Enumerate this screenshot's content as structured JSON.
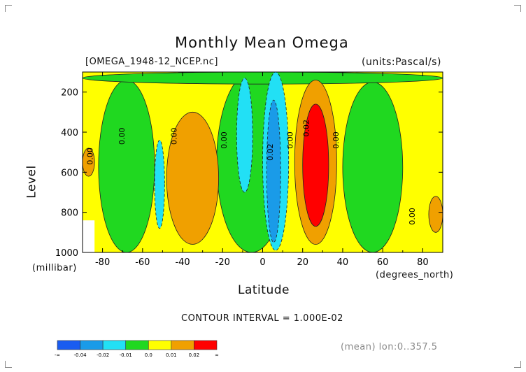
{
  "chart_data": {
    "type": "heatmap",
    "title": "Monthly Mean Omega",
    "file_label": "[OMEGA_1948-12_NCEP.nc]",
    "units_label": "(units:Pascal/s)",
    "ylabel": "Level",
    "yunit": "(millibar)",
    "xlabel": "Latitude",
    "xunit": "(degrees_north)",
    "xlim": [
      -90,
      90
    ],
    "ylim": [
      1000,
      100
    ],
    "x_ticks": [
      "-80",
      "-60",
      "-40",
      "-20",
      "0",
      "20",
      "40",
      "60",
      "80"
    ],
    "y_ticks": [
      "200",
      "400",
      "600",
      "800",
      "1000"
    ],
    "contour_interval": "CONTOUR INTERVAL = 1.000E-02",
    "mean_note": "(mean) lon:0..357.5",
    "contour_labels": [
      {
        "text": "0.00",
        "lat": -85,
        "level": 520
      },
      {
        "text": "0.00",
        "lat": -69,
        "level": 420
      },
      {
        "text": "0.00",
        "lat": -43,
        "level": 420
      },
      {
        "text": "0.00",
        "lat": -18,
        "level": 440
      },
      {
        "text": "0.02",
        "lat": 5,
        "level": 500
      },
      {
        "text": "0.00",
        "lat": 15,
        "level": 440
      },
      {
        "text": "0.02",
        "lat": 23,
        "level": 380
      },
      {
        "text": "0.00",
        "lat": 38,
        "level": 440
      },
      {
        "text": "0.00",
        "lat": 76,
        "level": 820
      }
    ],
    "levels": {
      "bounds": [
        "-∞",
        "-0.04",
        "-0.02",
        "-0.01",
        "0.0",
        "0.01",
        "0.02",
        "∞"
      ],
      "colors": [
        "#1a5cf0",
        "#1a9be8",
        "#22e0f5",
        "#20d820",
        "#ffff00",
        "#f0a000",
        "#ff0000"
      ]
    },
    "regions": [
      {
        "color": "#ffff00",
        "band": "background"
      },
      {
        "color": "#20d820",
        "lat_range": [
          -82,
          -54
        ],
        "level_range": [
          140,
          1000
        ]
      },
      {
        "color": "#20d820",
        "lat_range": [
          -23,
          12
        ],
        "level_range": [
          100,
          1000
        ]
      },
      {
        "color": "#20d820",
        "lat_range": [
          40,
          70
        ],
        "level_range": [
          150,
          1000
        ]
      },
      {
        "color": "#20d820",
        "lat_range": [
          -90,
          90
        ],
        "level_range": [
          100,
          160
        ]
      },
      {
        "color": "#f0a000",
        "lat_range": [
          -48,
          -22
        ],
        "level_range": [
          300,
          960
        ]
      },
      {
        "color": "#f0a000",
        "lat_range": [
          -90,
          -84
        ],
        "level_range": [
          480,
          620
        ]
      },
      {
        "color": "#f0a000",
        "lat_range": [
          83,
          90
        ],
        "level_range": [
          720,
          900
        ]
      },
      {
        "color": "#f0a000",
        "lat_range": [
          16,
          37
        ],
        "level_range": [
          140,
          960
        ]
      },
      {
        "color": "#ff0000",
        "lat_range": [
          20,
          33
        ],
        "level_range": [
          260,
          870
        ]
      },
      {
        "color": "#22e0f5",
        "lat_range": [
          -54,
          -49
        ],
        "level_range": [
          440,
          880
        ]
      },
      {
        "color": "#22e0f5",
        "lat_range": [
          -13,
          -5
        ],
        "level_range": [
          130,
          700
        ]
      },
      {
        "color": "#22e0f5",
        "lat_range": [
          0,
          13
        ],
        "level_range": [
          100,
          990
        ]
      },
      {
        "color": "#1a9be8",
        "lat_range": [
          2,
          9
        ],
        "level_range": [
          240,
          950
        ]
      }
    ]
  }
}
